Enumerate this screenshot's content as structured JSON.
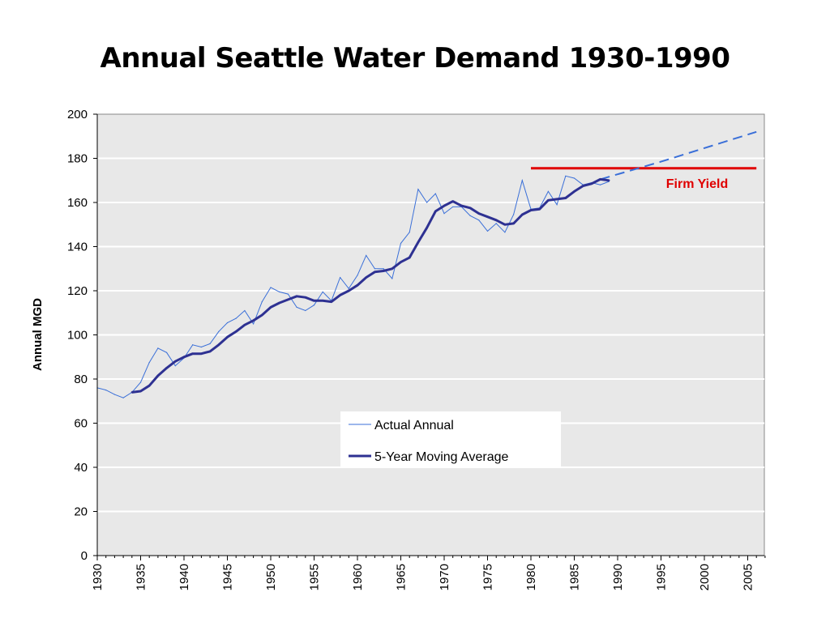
{
  "title": "Annual Seattle Water Demand 1930-1990",
  "chart_data": {
    "type": "line",
    "title": "Annual Seattle Water Demand 1930-1990",
    "xlabel": "",
    "ylabel": "Annual MGD",
    "xlim": [
      1930,
      2007
    ],
    "ylim": [
      0,
      200
    ],
    "x_ticks": [
      1930,
      1935,
      1940,
      1945,
      1950,
      1955,
      1960,
      1965,
      1970,
      1975,
      1980,
      1985,
      1990,
      1995,
      2000,
      2005
    ],
    "y_ticks": [
      0,
      20,
      40,
      60,
      80,
      100,
      120,
      140,
      160,
      180,
      200
    ],
    "grid": "horizontal",
    "legend_position": "bottom-center",
    "series": [
      {
        "name": "Actual Annual",
        "color": "#3a6fd8",
        "style": "thin",
        "x": [
          1930,
          1931,
          1932,
          1933,
          1934,
          1935,
          1936,
          1937,
          1938,
          1939,
          1940,
          1941,
          1942,
          1943,
          1944,
          1945,
          1946,
          1947,
          1948,
          1949,
          1950,
          1951,
          1952,
          1953,
          1954,
          1955,
          1956,
          1957,
          1958,
          1959,
          1960,
          1961,
          1962,
          1963,
          1964,
          1965,
          1966,
          1967,
          1968,
          1969,
          1970,
          1971,
          1972,
          1973,
          1974,
          1975,
          1976,
          1977,
          1978,
          1979,
          1980,
          1981,
          1982,
          1983,
          1984,
          1985,
          1986,
          1987,
          1988,
          1989
        ],
        "y": [
          76,
          75,
          73,
          71.5,
          74,
          78.5,
          87.5,
          94,
          92,
          86,
          89.5,
          95.5,
          94.5,
          96,
          101.5,
          105.5,
          107.5,
          111,
          105,
          115,
          121.5,
          119.5,
          118.5,
          112.5,
          111,
          113.5,
          119.5,
          115.5,
          126,
          121,
          127,
          136,
          130,
          130,
          125.5,
          141.5,
          146.5,
          166,
          160,
          164,
          155,
          158,
          158,
          154,
          152,
          147,
          150.5,
          146.5,
          154.5,
          170,
          157,
          157.5,
          165,
          159,
          172,
          171,
          168,
          169,
          168,
          169.5
        ]
      },
      {
        "name": "5-Year Moving Average",
        "color": "#2e3192",
        "style": "thick",
        "x": [
          1934,
          1935,
          1936,
          1937,
          1938,
          1939,
          1940,
          1941,
          1942,
          1943,
          1944,
          1945,
          1946,
          1947,
          1948,
          1949,
          1950,
          1951,
          1952,
          1953,
          1954,
          1955,
          1956,
          1957,
          1958,
          1959,
          1960,
          1961,
          1962,
          1963,
          1964,
          1965,
          1966,
          1967,
          1968,
          1969,
          1970,
          1971,
          1972,
          1973,
          1974,
          1975,
          1976,
          1977,
          1978,
          1979,
          1980,
          1981,
          1982,
          1983,
          1984,
          1985,
          1986,
          1987,
          1988,
          1989
        ],
        "y": [
          74,
          74.5,
          77,
          81.5,
          85,
          88,
          90,
          91.5,
          91.5,
          92.5,
          95.5,
          99,
          101.5,
          104.5,
          106.5,
          109,
          112.5,
          114.5,
          116,
          117.5,
          117,
          115.5,
          115.5,
          115,
          118,
          120,
          122.5,
          126,
          128.5,
          129,
          130,
          133,
          135,
          142,
          148.5,
          156,
          158.5,
          160.5,
          158.5,
          157.5,
          155,
          153.5,
          152,
          150,
          150.5,
          154.5,
          156.5,
          157,
          161,
          161.5,
          162,
          165,
          167.5,
          168.5,
          170.5,
          170
        ]
      },
      {
        "name": "",
        "color": "#3a6fd8",
        "style": "dashed",
        "x": [
          1988,
          1995,
          2006
        ],
        "y": [
          170.5,
          178.5,
          192
        ]
      },
      {
        "name": "",
        "color": "#e00000",
        "style": "solid",
        "x": [
          1980,
          2006
        ],
        "y": [
          175.5,
          175.5
        ]
      }
    ],
    "annotations": [
      {
        "text": "Firm Yield",
        "color": "#e00000"
      }
    ]
  }
}
